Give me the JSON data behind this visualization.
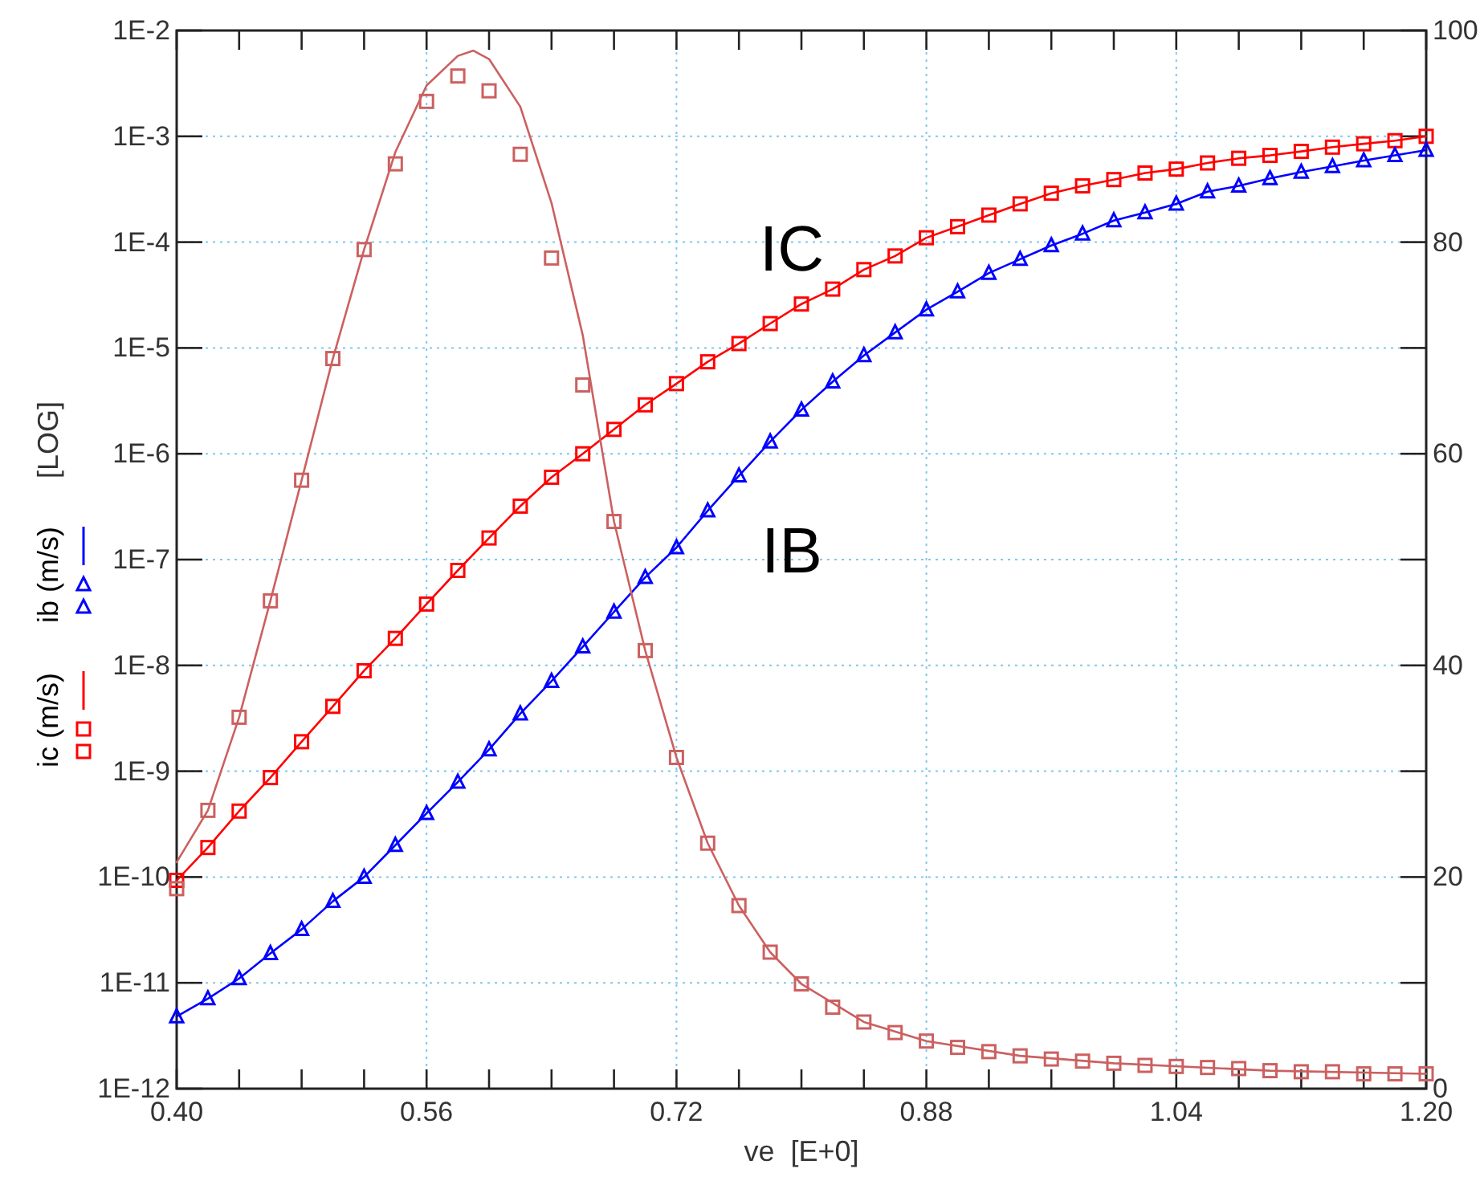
{
  "chart_data": {
    "type": "line",
    "xlabel": "ve  [E+0]",
    "ylabel": "[LOG]",
    "log": "y",
    "grid": true,
    "legend": "left",
    "xlim": [
      0.4,
      1.2
    ],
    "xticks": [
      {
        "value": 0.4,
        "label": "0.40"
      },
      {
        "value": 0.44,
        "label": null
      },
      {
        "value": 0.48,
        "label": null
      },
      {
        "value": 0.52,
        "label": null
      },
      {
        "value": 0.56,
        "label": "0.56"
      },
      {
        "value": 0.6,
        "label": null
      },
      {
        "value": 0.64,
        "label": null
      },
      {
        "value": 0.68,
        "label": null
      },
      {
        "value": 0.72,
        "label": "0.72"
      },
      {
        "value": 0.76,
        "label": null
      },
      {
        "value": 0.8,
        "label": null
      },
      {
        "value": 0.84,
        "label": null
      },
      {
        "value": 0.88,
        "label": "0.88"
      },
      {
        "value": 0.92,
        "label": null
      },
      {
        "value": 0.96,
        "label": null
      },
      {
        "value": 1.0,
        "label": null
      },
      {
        "value": 1.04,
        "label": "1.04"
      },
      {
        "value": 1.08,
        "label": null
      },
      {
        "value": 1.12,
        "label": null
      },
      {
        "value": 1.16,
        "label": null
      },
      {
        "value": 1.2,
        "label": "1.20"
      }
    ],
    "ylim": [
      1e-12,
      0.01
    ],
    "yticks": [
      {
        "value": 1e-12,
        "label": "1E-12"
      },
      {
        "value": 1e-11,
        "label": "1E-11"
      },
      {
        "value": 1e-10,
        "label": "1E-10"
      },
      {
        "value": 1e-09,
        "label": "1E-9"
      },
      {
        "value": 1e-08,
        "label": "1E-8"
      },
      {
        "value": 1e-07,
        "label": "1E-7"
      },
      {
        "value": 1e-06,
        "label": "1E-6"
      },
      {
        "value": 1e-05,
        "label": "1E-5"
      },
      {
        "value": 0.0001,
        "label": "1E-4"
      },
      {
        "value": 0.001,
        "label": "1E-3"
      },
      {
        "value": 0.01,
        "label": "1E-2"
      }
    ],
    "y2lim": [
      0,
      100
    ],
    "y2ticks": [
      0,
      {
        "value": 10,
        "label": null
      },
      20,
      {
        "value": 30,
        "label": null
      },
      40,
      {
        "value": 50,
        "label": null
      },
      60,
      {
        "value": 70,
        "label": null
      },
      80,
      {
        "value": 90,
        "label": null
      },
      100
    ],
    "x": [
      0.4,
      0.42,
      0.44,
      0.46,
      0.48,
      0.5,
      0.52,
      0.54,
      0.56,
      0.58,
      0.6,
      0.62,
      0.64,
      0.66,
      0.68,
      0.7,
      0.72,
      0.74,
      0.76,
      0.78,
      0.8,
      0.82,
      0.84,
      0.86,
      0.88,
      0.9,
      0.92,
      0.94,
      0.96,
      0.98,
      1.0,
      1.02,
      1.04,
      1.06,
      1.08,
      1.1,
      1.12,
      1.14,
      1.16,
      1.18,
      1.2
    ],
    "series": [
      {
        "color": "#ff0000",
        "marker": "none",
        "line_style": "solid",
        "values": [
          9.3e-11,
          1.9e-10,
          4.2e-10,
          8.7e-10,
          1.9e-09,
          4.1e-09,
          8.9e-09,
          1.8e-08,
          3.8e-08,
          7.9e-08,
          1.6e-07,
          3.2e-07,
          6e-07,
          1e-06,
          1.7e-06,
          2.9e-06,
          4.6e-06,
          7.4e-06,
          1.1e-05,
          1.7e-05,
          2.6e-05,
          3.6e-05,
          5.5e-05,
          7.4e-05,
          0.00011,
          0.00014,
          0.00018,
          0.00023,
          0.00029,
          0.00034,
          0.00039,
          0.00045,
          0.00049,
          0.00056,
          0.00062,
          0.00066,
          0.00072,
          0.00079,
          0.00085,
          0.00091,
          0.001
        ]
      },
      {
        "type": "scatter",
        "name": "ic (m/s)",
        "color": "#ff0000",
        "marker": "square",
        "values": [
          9.3e-11,
          1.9e-10,
          4.2e-10,
          8.7e-10,
          1.9e-09,
          4.1e-09,
          8.9e-09,
          1.8e-08,
          3.8e-08,
          7.9e-08,
          1.6e-07,
          3.2e-07,
          6e-07,
          1e-06,
          1.7e-06,
          2.9e-06,
          4.6e-06,
          7.4e-06,
          1.1e-05,
          1.7e-05,
          2.6e-05,
          3.6e-05,
          5.5e-05,
          7.4e-05,
          0.00011,
          0.00014,
          0.00018,
          0.00023,
          0.00029,
          0.00034,
          0.00039,
          0.00045,
          0.00049,
          0.00056,
          0.00062,
          0.00066,
          0.00072,
          0.00079,
          0.00085,
          0.00091,
          0.001
        ]
      },
      {
        "color": "#0000ff",
        "marker": "none",
        "line_style": "solid",
        "values": [
          4.8e-12,
          7.1e-12,
          1.1e-11,
          1.9e-11,
          3.2e-11,
          5.9e-11,
          1e-10,
          2e-10,
          4e-10,
          7.9e-10,
          1.6e-09,
          3.5e-09,
          7.1e-09,
          1.5e-08,
          3.2e-08,
          6.8e-08,
          1.3e-07,
          2.9e-07,
          6.2e-07,
          1.3e-06,
          2.6e-06,
          4.8e-06,
          8.5e-06,
          1.4e-05,
          2.3e-05,
          3.4e-05,
          5.1e-05,
          6.9e-05,
          9.3e-05,
          0.00012,
          0.00016,
          0.00019,
          0.00023,
          0.0003,
          0.00034,
          0.0004,
          0.00046,
          0.00052,
          0.00059,
          0.00066,
          0.00074
        ]
      },
      {
        "type": "scatter",
        "name": "ib (m/s)",
        "color": "#0000ff",
        "marker": "triangle",
        "values": [
          4.8e-12,
          7.1e-12,
          1.1e-11,
          1.9e-11,
          3.2e-11,
          5.9e-11,
          1e-10,
          2e-10,
          4e-10,
          7.9e-10,
          1.6e-09,
          3.5e-09,
          7.1e-09,
          1.5e-08,
          3.2e-08,
          6.8e-08,
          1.3e-07,
          2.9e-07,
          6.2e-07,
          1.3e-06,
          2.6e-06,
          4.8e-06,
          8.5e-06,
          1.4e-05,
          2.3e-05,
          3.4e-05,
          5.1e-05,
          6.9e-05,
          9.3e-05,
          0.00012,
          0.00016,
          0.00019,
          0.00023,
          0.0003,
          0.00034,
          0.0004,
          0.00046,
          0.00052,
          0.00059,
          0.00066,
          0.00074
        ]
      },
      {
        "axis": "y2",
        "color": "#cc6060",
        "marker": "none",
        "line_style": "solid",
        "x": [
          0.4,
          0.42,
          0.44,
          0.46,
          0.48,
          0.5,
          0.52,
          0.54,
          0.56,
          0.58,
          0.59,
          0.6,
          0.62,
          0.64,
          0.66,
          0.68,
          0.7,
          0.72,
          0.74,
          0.76,
          0.78,
          0.8,
          0.84,
          0.88,
          0.94,
          1.0,
          1.1,
          1.2
        ],
        "values": [
          21.4,
          26.3,
          35.1,
          46.1,
          57.5,
          69.0,
          79.3,
          88.5,
          94.8,
          97.6,
          98.1,
          97.3,
          92.8,
          83.7,
          71.2,
          53.6,
          41.4,
          31.3,
          23.2,
          17.3,
          12.9,
          9.9,
          6.3,
          4.5,
          3.1,
          2.4,
          1.7,
          1.4
        ]
      },
      {
        "type": "scatter",
        "axis": "y2",
        "color": "#cc6060",
        "marker": "square",
        "values": [
          18.9,
          26.3,
          35.1,
          46.1,
          57.5,
          69.0,
          79.3,
          87.4,
          93.3,
          95.7,
          94.3,
          88.3,
          78.5,
          66.5,
          53.6,
          41.4,
          31.3,
          23.2,
          17.3,
          12.9,
          9.9,
          7.7,
          6.3,
          5.3,
          4.5,
          3.9,
          3.5,
          3.1,
          2.8,
          2.6,
          2.4,
          2.2,
          2.1,
          2.0,
          1.9,
          1.7,
          1.6,
          1.6,
          1.4,
          1.4,
          1.4
        ]
      }
    ],
    "annotations": [
      "IC",
      "IB"
    ]
  }
}
